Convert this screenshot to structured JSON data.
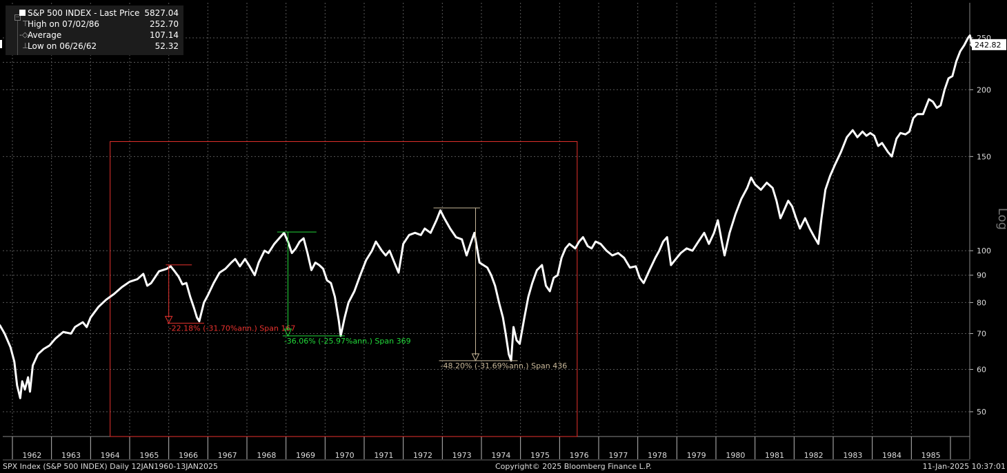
{
  "legend": {
    "title": "S&P 500 INDEX - Last Price",
    "last_price": "5827.04",
    "rows": [
      {
        "label": "High on 07/02/86",
        "value": "252.70",
        "icon": "high-icon"
      },
      {
        "label": "Average",
        "value": "107.14",
        "icon": "average-icon"
      },
      {
        "label": "Low on 06/26/62",
        "value": "52.32",
        "icon": "low-icon"
      }
    ]
  },
  "footer": {
    "left": "SPX Index (S&P 500 INDEX)  Daily 12JAN1960-13JAN2025",
    "center": "Copyright© 2025 Bloomberg Finance L.P.",
    "right": "11-Jan-2025 10:37:01"
  },
  "colors": {
    "background": "#000000",
    "series": "#ffffff",
    "red": "#e8322e",
    "green": "#22d93a",
    "tan": "#c8b89a",
    "grid": "#5a5a5a"
  },
  "chart_data": {
    "type": "line",
    "y_scale": "log",
    "y_axis_label": "Log",
    "ylim": [
      44,
      260
    ],
    "xlim": [
      1961.2,
      1986.6
    ],
    "y_ticks": [
      250,
      200,
      150,
      100,
      90,
      80,
      70,
      60,
      50
    ],
    "x_tick_labels": [
      "1962",
      "1963",
      "1964",
      "1965",
      "1966",
      "1967",
      "1968",
      "1969",
      "1970",
      "1971",
      "1972",
      "1973",
      "1974",
      "1975",
      "1976",
      "1977",
      "1978",
      "1979",
      "1980",
      "1981",
      "1982",
      "1983",
      "1984",
      "1985"
    ],
    "last_value_label": "242.82",
    "series": [
      {
        "values": [
          [
            1961.2,
            66.5
          ],
          [
            1961.35,
            70.5
          ],
          [
            1961.5,
            72.5
          ],
          [
            1961.58,
            71.0
          ],
          [
            1961.68,
            72.5
          ],
          [
            1961.8,
            70.0
          ],
          [
            1961.95,
            66.0
          ],
          [
            1962.05,
            62.0
          ],
          [
            1962.12,
            56.0
          ],
          [
            1962.2,
            53.0
          ],
          [
            1962.25,
            57.0
          ],
          [
            1962.32,
            55.0
          ],
          [
            1962.4,
            58.0
          ],
          [
            1962.45,
            54.5
          ],
          [
            1962.52,
            61.0
          ],
          [
            1962.65,
            64.0
          ],
          [
            1962.8,
            65.5
          ],
          [
            1962.95,
            66.5
          ],
          [
            1963.1,
            68.5
          ],
          [
            1963.3,
            70.5
          ],
          [
            1963.5,
            70.0
          ],
          [
            1963.6,
            72.0
          ],
          [
            1963.8,
            73.5
          ],
          [
            1963.9,
            72.0
          ],
          [
            1964.0,
            75.0
          ],
          [
            1964.2,
            78.5
          ],
          [
            1964.4,
            81.0
          ],
          [
            1964.6,
            83.0
          ],
          [
            1964.8,
            85.5
          ],
          [
            1965.0,
            87.5
          ],
          [
            1965.2,
            88.5
          ],
          [
            1965.35,
            90.5
          ],
          [
            1965.45,
            86.0
          ],
          [
            1965.55,
            87.0
          ],
          [
            1965.75,
            91.5
          ],
          [
            1965.95,
            92.5
          ],
          [
            1966.05,
            93.5
          ],
          [
            1966.15,
            91.5
          ],
          [
            1966.25,
            89.5
          ],
          [
            1966.35,
            86.5
          ],
          [
            1966.45,
            87.0
          ],
          [
            1966.55,
            82.0
          ],
          [
            1966.65,
            78.0
          ],
          [
            1966.72,
            75.0
          ],
          [
            1966.78,
            73.8
          ],
          [
            1966.9,
            80.0
          ],
          [
            1967.0,
            82.5
          ],
          [
            1967.15,
            87.0
          ],
          [
            1967.3,
            91.0
          ],
          [
            1967.45,
            92.5
          ],
          [
            1967.6,
            95.0
          ],
          [
            1967.7,
            96.5
          ],
          [
            1967.82,
            93.5
          ],
          [
            1967.95,
            96.5
          ],
          [
            1968.05,
            94.0
          ],
          [
            1968.2,
            90.0
          ],
          [
            1968.3,
            95.0
          ],
          [
            1968.45,
            100.0
          ],
          [
            1968.55,
            99.0
          ],
          [
            1968.7,
            103.0
          ],
          [
            1968.85,
            106.0
          ],
          [
            1968.95,
            108.0
          ],
          [
            1969.05,
            104.0
          ],
          [
            1969.15,
            99.0
          ],
          [
            1969.25,
            101.0
          ],
          [
            1969.35,
            104.0
          ],
          [
            1969.45,
            105.5
          ],
          [
            1969.55,
            99.0
          ],
          [
            1969.65,
            92.0
          ],
          [
            1969.75,
            95.0
          ],
          [
            1969.85,
            94.0
          ],
          [
            1969.95,
            92.5
          ],
          [
            1970.05,
            88.0
          ],
          [
            1970.15,
            87.0
          ],
          [
            1970.25,
            82.0
          ],
          [
            1970.35,
            74.0
          ],
          [
            1970.4,
            69.3
          ],
          [
            1970.5,
            75.0
          ],
          [
            1970.6,
            80.0
          ],
          [
            1970.75,
            84.0
          ],
          [
            1970.9,
            90.0
          ],
          [
            1971.05,
            96.0
          ],
          [
            1971.2,
            100.0
          ],
          [
            1971.3,
            104.0
          ],
          [
            1971.45,
            100.0
          ],
          [
            1971.55,
            98.0
          ],
          [
            1971.65,
            100.0
          ],
          [
            1971.8,
            94.0
          ],
          [
            1971.88,
            91.0
          ],
          [
            1972.0,
            103.0
          ],
          [
            1972.15,
            107.0
          ],
          [
            1972.3,
            108.0
          ],
          [
            1972.45,
            107.0
          ],
          [
            1972.55,
            110.0
          ],
          [
            1972.7,
            108.0
          ],
          [
            1972.85,
            114.0
          ],
          [
            1972.95,
            119.0
          ],
          [
            1973.05,
            115.0
          ],
          [
            1973.2,
            110.0
          ],
          [
            1973.35,
            106.0
          ],
          [
            1973.5,
            105.0
          ],
          [
            1973.62,
            98.0
          ],
          [
            1973.72,
            103.0
          ],
          [
            1973.82,
            108.0
          ],
          [
            1973.9,
            100.0
          ],
          [
            1973.95,
            95.0
          ],
          [
            1974.05,
            94.0
          ],
          [
            1974.15,
            93.0
          ],
          [
            1974.25,
            90.0
          ],
          [
            1974.35,
            86.0
          ],
          [
            1974.45,
            80.0
          ],
          [
            1974.55,
            75.0
          ],
          [
            1974.62,
            70.0
          ],
          [
            1974.7,
            64.0
          ],
          [
            1974.76,
            62.3
          ],
          [
            1974.82,
            72.0
          ],
          [
            1974.9,
            68.0
          ],
          [
            1974.98,
            67.0
          ],
          [
            1975.1,
            75.0
          ],
          [
            1975.2,
            82.0
          ],
          [
            1975.3,
            87.0
          ],
          [
            1975.42,
            92.0
          ],
          [
            1975.55,
            94.0
          ],
          [
            1975.65,
            86.0
          ],
          [
            1975.75,
            84.0
          ],
          [
            1975.85,
            89.0
          ],
          [
            1975.95,
            90.0
          ],
          [
            1976.05,
            97.0
          ],
          [
            1976.15,
            101.0
          ],
          [
            1976.25,
            103.0
          ],
          [
            1976.4,
            101.0
          ],
          [
            1976.5,
            104.0
          ],
          [
            1976.6,
            106.0
          ],
          [
            1976.72,
            102.0
          ],
          [
            1976.82,
            101.0
          ],
          [
            1976.92,
            104.0
          ],
          [
            1977.05,
            103.0
          ],
          [
            1977.2,
            100.0
          ],
          [
            1977.35,
            98.0
          ],
          [
            1977.5,
            99.0
          ],
          [
            1977.65,
            97.0
          ],
          [
            1977.8,
            93.0
          ],
          [
            1977.95,
            93.5
          ],
          [
            1978.05,
            89.0
          ],
          [
            1978.15,
            87.0
          ],
          [
            1978.3,
            92.0
          ],
          [
            1978.45,
            97.0
          ],
          [
            1978.55,
            100.0
          ],
          [
            1978.65,
            104.0
          ],
          [
            1978.75,
            106.0
          ],
          [
            1978.85,
            94.0
          ],
          [
            1978.95,
            96.0
          ],
          [
            1979.1,
            99.0
          ],
          [
            1979.25,
            101.0
          ],
          [
            1979.4,
            100.0
          ],
          [
            1979.55,
            104.0
          ],
          [
            1979.7,
            108.0
          ],
          [
            1979.82,
            103.0
          ],
          [
            1979.95,
            108.0
          ],
          [
            1980.05,
            114.0
          ],
          [
            1980.15,
            104.0
          ],
          [
            1980.22,
            98.0
          ],
          [
            1980.35,
            108.0
          ],
          [
            1980.5,
            117.0
          ],
          [
            1980.65,
            125.0
          ],
          [
            1980.8,
            131.0
          ],
          [
            1980.9,
            137.0
          ],
          [
            1981.0,
            133.0
          ],
          [
            1981.15,
            130.0
          ],
          [
            1981.3,
            134.0
          ],
          [
            1981.45,
            131.0
          ],
          [
            1981.55,
            124.0
          ],
          [
            1981.65,
            115.0
          ],
          [
            1981.72,
            118.0
          ],
          [
            1981.85,
            124.0
          ],
          [
            1981.95,
            121.0
          ],
          [
            1982.05,
            115.0
          ],
          [
            1982.15,
            110.0
          ],
          [
            1982.28,
            115.0
          ],
          [
            1982.4,
            110.0
          ],
          [
            1982.52,
            106.0
          ],
          [
            1982.62,
            103.0
          ],
          [
            1982.7,
            115.0
          ],
          [
            1982.8,
            130.0
          ],
          [
            1982.92,
            138.0
          ],
          [
            1983.05,
            145.0
          ],
          [
            1983.2,
            153.0
          ],
          [
            1983.35,
            163.0
          ],
          [
            1983.5,
            168.0
          ],
          [
            1983.62,
            163.0
          ],
          [
            1983.75,
            167.0
          ],
          [
            1983.85,
            164.0
          ],
          [
            1983.95,
            166.0
          ],
          [
            1984.05,
            164.0
          ],
          [
            1984.15,
            157.0
          ],
          [
            1984.25,
            159.0
          ],
          [
            1984.4,
            153.0
          ],
          [
            1984.5,
            150.0
          ],
          [
            1984.62,
            162.0
          ],
          [
            1984.72,
            166.0
          ],
          [
            1984.85,
            165.0
          ],
          [
            1984.95,
            167.0
          ],
          [
            1985.05,
            177.0
          ],
          [
            1985.15,
            180.0
          ],
          [
            1985.3,
            180.0
          ],
          [
            1985.45,
            192.0
          ],
          [
            1985.55,
            190.0
          ],
          [
            1985.65,
            185.0
          ],
          [
            1985.75,
            187.0
          ],
          [
            1985.85,
            200.0
          ],
          [
            1985.95,
            210.0
          ],
          [
            1986.05,
            212.0
          ],
          [
            1986.15,
            226.0
          ],
          [
            1986.25,
            236.0
          ],
          [
            1986.35,
            242.0
          ],
          [
            1986.45,
            250.0
          ],
          [
            1986.5,
            252.7
          ],
          [
            1986.55,
            242.82
          ]
        ]
      }
    ],
    "annotations": [
      {
        "name": "drawdown-1966",
        "color": "red",
        "label": "-22.18% (-31.70%ann.) Span 167",
        "x_start": 1966.1,
        "x_end": 1966.8,
        "y_high": 94.06,
        "y_low": 73.2,
        "x_arrow": 1966.0,
        "label_x": 1966.0
      },
      {
        "name": "drawdown-1969",
        "color": "green",
        "label": "-36.06% (-25.97%ann.) Span 369",
        "x_start": 1968.95,
        "x_end": 1970.4,
        "y_high": 108.37,
        "y_low": 69.29,
        "x_arrow": 1969.05,
        "label_x": 1968.95
      },
      {
        "name": "drawdown-1973",
        "color": "tan",
        "label": "-48.20% (-31.69%ann.) Span 436",
        "x_start": 1972.95,
        "x_end": 1974.82,
        "y_high": 120.24,
        "y_low": 62.28,
        "x_arrow": 1973.85,
        "label_x": 1972.95
      }
    ],
    "highlight_box": {
      "x_start": 1964.5,
      "x_end": 1976.45,
      "y_top": 160,
      "y_bottom": 44,
      "color": "red"
    }
  }
}
